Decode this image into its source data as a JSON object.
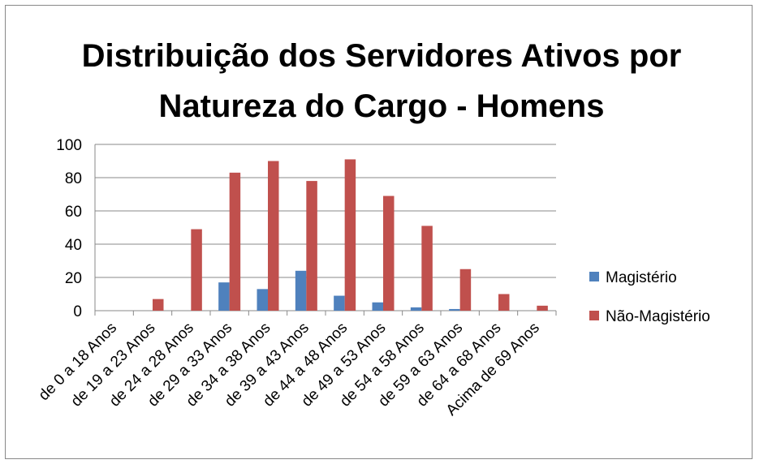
{
  "chart_data": {
    "type": "bar",
    "title": "Distribuição dos Servidores Ativos por Natureza do Cargo - Homens",
    "categories": [
      "de 0 a 18 Anos",
      "de 19 a 23 Anos",
      "de 24 a 28 Anos",
      "de 29 a 33 Anos",
      "de 34 a 38 Anos",
      "de 39 a 43 Anos",
      "de 44 a 48 Anos",
      "de 49 a 53 Anos",
      "de 54 a 58 Anos",
      "de 59 a 63 Anos",
      "de 64 a 68 Anos",
      "Acima de 69 Anos"
    ],
    "series": [
      {
        "name": "Magistério",
        "color": "#4f81bd",
        "values": [
          0,
          0,
          0,
          17,
          13,
          24,
          9,
          5,
          2,
          1,
          0,
          0
        ]
      },
      {
        "name": "Não-Magistério",
        "color": "#c0504d",
        "values": [
          0,
          7,
          49,
          83,
          90,
          78,
          91,
          69,
          51,
          25,
          10,
          3
        ]
      }
    ],
    "ylim": [
      0,
      100
    ],
    "yticks": [
      0,
      20,
      40,
      60,
      80,
      100
    ],
    "grid": true,
    "legend": "right"
  }
}
